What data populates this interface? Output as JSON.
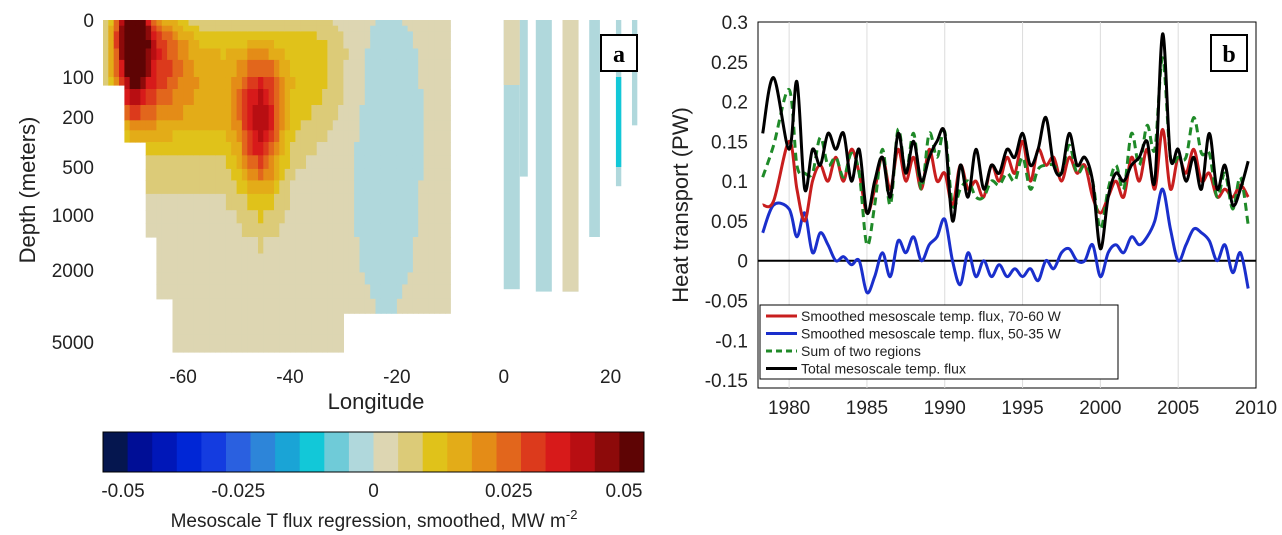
{
  "chart_data": [
    {
      "panel": "a",
      "type": "heatmap",
      "xlabel": "Longitude",
      "ylabel": "Depth (meters)",
      "x_ticks": [
        -60,
        -40,
        -20,
        0,
        20
      ],
      "y_ticks": [
        "0",
        "100",
        "200",
        "500",
        "1000",
        "2000",
        "5000"
      ],
      "xlim": [
        -75,
        27
      ],
      "ylim": [
        5000,
        0
      ],
      "colorbar": {
        "label_main": "Mesoscale T flux regression, smoothed, MW m",
        "label_sup": "-2",
        "ticks": [
          "-0.05",
          "-0.025",
          "0",
          "0.025",
          "0.05"
        ],
        "range": [
          -0.05,
          0.05
        ],
        "colors": [
          "#05164f",
          "#000e96",
          "#0017b8",
          "#0026d6",
          "#143ce0",
          "#2a60e0",
          "#2d85d9",
          "#1aa4d6",
          "#12c8d8",
          "#6fcbd8",
          "#b0d8dc",
          "#ddd6b2",
          "#dccb78",
          "#e0c21a",
          "#e3ac18",
          "#e48c17",
          "#e2661c",
          "#dc3a1c",
          "#d71a1a",
          "#b80e12",
          "#8d0a0a",
          "#5e0404"
        ]
      },
      "regions": [
        {
          "name": "near-zero field",
          "value": 0.002,
          "color": "#ddd6b2"
        },
        {
          "name": "western boundary maximum",
          "value": 0.05,
          "lon_range": [
            -72,
            -66
          ],
          "depth_range": [
            0,
            300
          ]
        },
        {
          "name": "secondary maximum",
          "value": 0.028,
          "lon_range": [
            -50,
            -40
          ],
          "depth_range": [
            100,
            800
          ]
        },
        {
          "name": "weak negative band",
          "value": -0.004,
          "color": "#b0d8dc"
        }
      ]
    },
    {
      "panel": "b",
      "type": "line",
      "xlabel": "",
      "ylabel": "Heat transport (PW)",
      "xlim": [
        1978,
        2010
      ],
      "ylim": [
        -0.16,
        0.3
      ],
      "x_ticks": [
        1980,
        1985,
        1990,
        1995,
        2000,
        2005,
        2010
      ],
      "y_ticks": [
        "-0.15",
        "-0.1",
        "-0.05",
        "0",
        "0.05",
        "0.1",
        "0.15",
        "0.2",
        "0.25",
        "0.3"
      ],
      "x": [
        1978.3,
        1979,
        1980,
        1980.5,
        1981,
        1981.5,
        1982,
        1982.5,
        1983,
        1983.5,
        1984,
        1984.5,
        1985,
        1985.5,
        1986,
        1986.5,
        1987,
        1987.5,
        1988,
        1988.5,
        1989,
        1989.5,
        1990,
        1990.5,
        1991,
        1991.5,
        1992,
        1992.5,
        1993,
        1993.5,
        1994,
        1994.5,
        1995,
        1995.5,
        1996,
        1996.5,
        1997,
        1997.5,
        1998,
        1998.5,
        1999,
        1999.5,
        2000,
        2000.5,
        2001,
        2001.5,
        2002,
        2002.5,
        2003,
        2003.5,
        2004,
        2004.5,
        2005,
        2005.5,
        2006,
        2006.5,
        2007,
        2007.5,
        2008,
        2008.5,
        2009,
        2009.5
      ],
      "series": [
        {
          "name": "Smoothed mesoscale temp. flux, 70-60 W",
          "color": "#c81e1e",
          "dash": "solid",
          "values": [
            0.07,
            0.075,
            0.15,
            0.09,
            0.05,
            0.1,
            0.12,
            0.1,
            0.13,
            0.1,
            0.14,
            0.11,
            0.06,
            0.09,
            0.13,
            0.09,
            0.14,
            0.1,
            0.13,
            0.09,
            0.14,
            0.1,
            0.11,
            0.07,
            0.12,
            0.09,
            0.1,
            0.08,
            0.12,
            0.1,
            0.13,
            0.11,
            0.15,
            0.1,
            0.14,
            0.12,
            0.13,
            0.1,
            0.13,
            0.11,
            0.12,
            0.08,
            0.06,
            0.08,
            0.1,
            0.08,
            0.13,
            0.1,
            0.14,
            0.09,
            0.165,
            0.09,
            0.13,
            0.11,
            0.14,
            0.1,
            0.11,
            0.08,
            0.09,
            0.08,
            0.095,
            0.08
          ]
        },
        {
          "name": "Smoothed mesoscale temp. flux, 50-35 W",
          "color": "#1a2fcc",
          "dash": "solid",
          "values": [
            0.035,
            0.07,
            0.065,
            0.03,
            0.06,
            0.01,
            0.035,
            0.02,
            0.0,
            0.005,
            -0.005,
            0.0,
            -0.04,
            -0.02,
            0.01,
            -0.02,
            0.025,
            0.01,
            0.03,
            0.0,
            0.02,
            0.03,
            0.052,
            0.0,
            -0.03,
            0.01,
            -0.02,
            0.0,
            -0.02,
            -0.005,
            -0.02,
            -0.01,
            -0.02,
            -0.01,
            -0.025,
            0.0,
            -0.01,
            0.01,
            0.015,
            0.0,
            0.0,
            0.02,
            -0.02,
            0.01,
            0.02,
            0.01,
            0.03,
            0.02,
            0.03,
            0.05,
            0.09,
            0.04,
            0.0,
            0.02,
            0.04,
            0.035,
            0.025,
            0.0,
            0.02,
            -0.015,
            0.01,
            -0.035
          ]
        },
        {
          "name": "Sum of two regions",
          "color": "#1f8a28",
          "dash": "dashed",
          "values": [
            0.105,
            0.145,
            0.215,
            0.12,
            0.11,
            0.11,
            0.155,
            0.12,
            0.13,
            0.105,
            0.135,
            0.11,
            0.02,
            0.07,
            0.14,
            0.07,
            0.165,
            0.11,
            0.16,
            0.09,
            0.16,
            0.13,
            0.162,
            0.07,
            0.09,
            0.1,
            0.08,
            0.08,
            0.1,
            0.095,
            0.11,
            0.1,
            0.13,
            0.09,
            0.115,
            0.12,
            0.12,
            0.11,
            0.145,
            0.11,
            0.12,
            0.1,
            0.04,
            0.09,
            0.12,
            0.09,
            0.16,
            0.12,
            0.17,
            0.14,
            0.255,
            0.13,
            0.13,
            0.13,
            0.18,
            0.135,
            0.135,
            0.08,
            0.11,
            0.065,
            0.105,
            0.045
          ]
        },
        {
          "name": "Total mesoscale temp. flux",
          "color": "#000000",
          "dash": "solid",
          "values": [
            0.16,
            0.23,
            0.14,
            0.225,
            0.09,
            0.14,
            0.12,
            0.16,
            0.14,
            0.16,
            0.1,
            0.14,
            0.06,
            0.1,
            0.13,
            0.08,
            0.16,
            0.11,
            0.15,
            0.1,
            0.13,
            0.15,
            0.16,
            0.05,
            0.12,
            0.08,
            0.14,
            0.09,
            0.12,
            0.11,
            0.14,
            0.13,
            0.16,
            0.12,
            0.14,
            0.18,
            0.12,
            0.11,
            0.16,
            0.12,
            0.13,
            0.1,
            0.015,
            0.08,
            0.11,
            0.1,
            0.12,
            0.13,
            0.15,
            0.1,
            0.285,
            0.13,
            0.14,
            0.1,
            0.13,
            0.09,
            0.16,
            0.09,
            0.12,
            0.07,
            0.09,
            0.125
          ]
        }
      ],
      "zero_line": true
    }
  ]
}
